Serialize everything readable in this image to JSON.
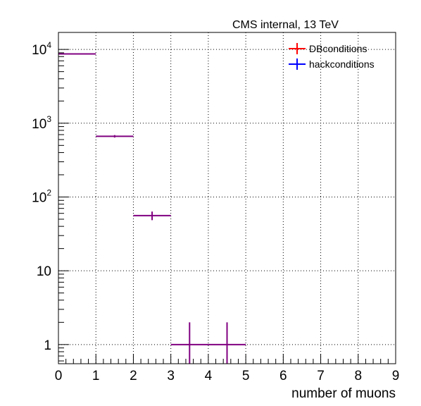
{
  "header": {
    "text": "CMS internal, 13 TeV"
  },
  "chart_data": {
    "type": "histogram",
    "xlabel": "number of muons",
    "ylabel": "",
    "xlim": [
      0,
      9
    ],
    "ylim": [
      0.55,
      17000
    ],
    "yscale": "log",
    "grid": true,
    "legend_position": "top-right",
    "x_ticks": [
      "0",
      "1",
      "2",
      "3",
      "4",
      "5",
      "6",
      "7",
      "8",
      "9"
    ],
    "y_ticks": [
      {
        "value": 1,
        "base": "1",
        "exp": ""
      },
      {
        "value": 10,
        "base": "10",
        "exp": ""
      },
      {
        "value": 100,
        "base": "10",
        "exp": "2"
      },
      {
        "value": 1000,
        "base": "10",
        "exp": "3"
      },
      {
        "value": 10000,
        "base": "10",
        "exp": "4"
      }
    ],
    "bins": [
      {
        "low": 0,
        "high": 1,
        "value": 8700
      },
      {
        "low": 1,
        "high": 2,
        "value": 665
      },
      {
        "low": 2,
        "high": 3,
        "value": 56
      },
      {
        "low": 3,
        "high": 4,
        "value": 1
      },
      {
        "low": 4,
        "high": 5,
        "value": 1
      }
    ],
    "series": [
      {
        "name": "DBconditions",
        "color": "#ff0000",
        "values": [
          8700,
          665,
          56,
          1,
          1
        ]
      },
      {
        "name": "hackconditions",
        "color": "#0000ff",
        "values": [
          8700,
          665,
          56,
          1,
          1
        ]
      }
    ],
    "overlap_color": "#800080"
  }
}
